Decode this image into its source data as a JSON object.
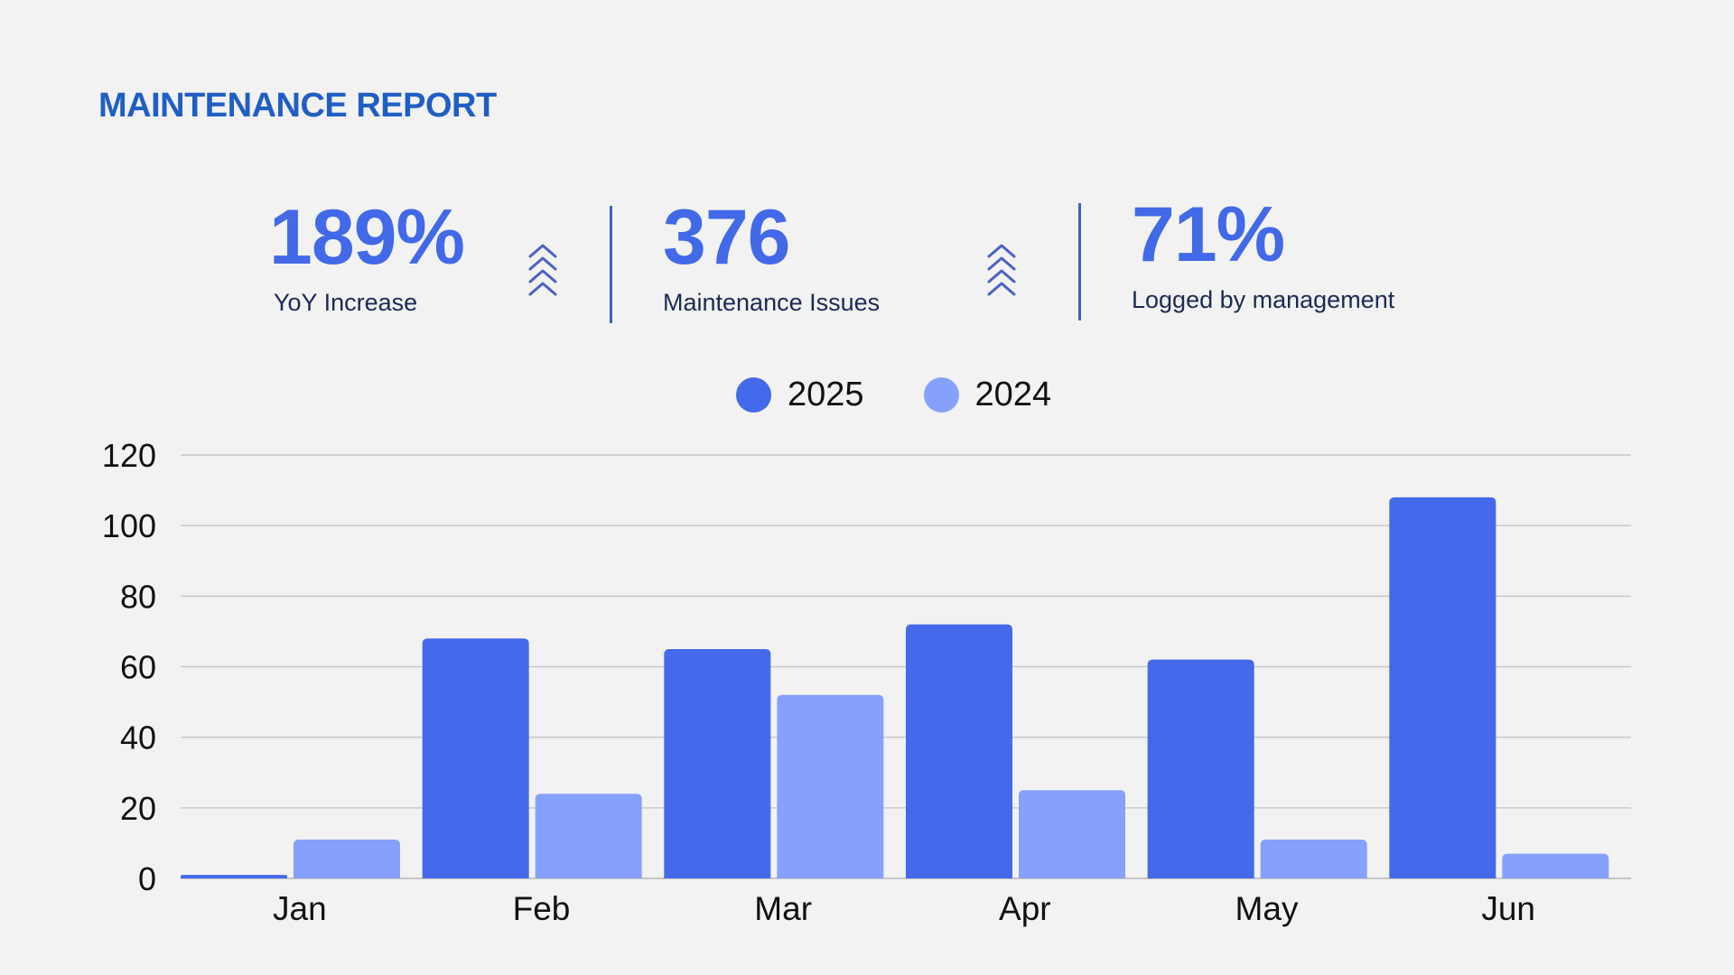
{
  "header": {
    "title": "MAINTENANCE REPORT"
  },
  "kpis": [
    {
      "value": "189%",
      "label": "YoY Increase"
    },
    {
      "value": "376",
      "label": "Maintenance Issues"
    },
    {
      "value": "71%",
      "label": "Logged by management"
    }
  ],
  "icons": [
    "chevrons-up-icon",
    "chevrons-up-icon"
  ],
  "colors": {
    "title": "#1f5fc4",
    "kpi_value": "#4169e8",
    "series_2025": "#4469ea",
    "series_2024": "#86a1fb",
    "background": "#f2f2f2"
  },
  "chart_data": {
    "type": "bar",
    "categories": [
      "Jan",
      "Feb",
      "Mar",
      "Apr",
      "May",
      "Jun"
    ],
    "series": [
      {
        "name": "2025",
        "values": [
          1,
          68,
          65,
          72,
          62,
          108
        ],
        "color": "#4469ea"
      },
      {
        "name": "2024",
        "values": [
          11,
          24,
          52,
          25,
          11,
          7
        ],
        "color": "#86a1fb"
      }
    ],
    "yticks": [
      "0",
      "20",
      "40",
      "60",
      "80",
      "100",
      "120"
    ],
    "ylim": [
      0,
      120
    ],
    "grid": true,
    "legend": "top-center"
  }
}
